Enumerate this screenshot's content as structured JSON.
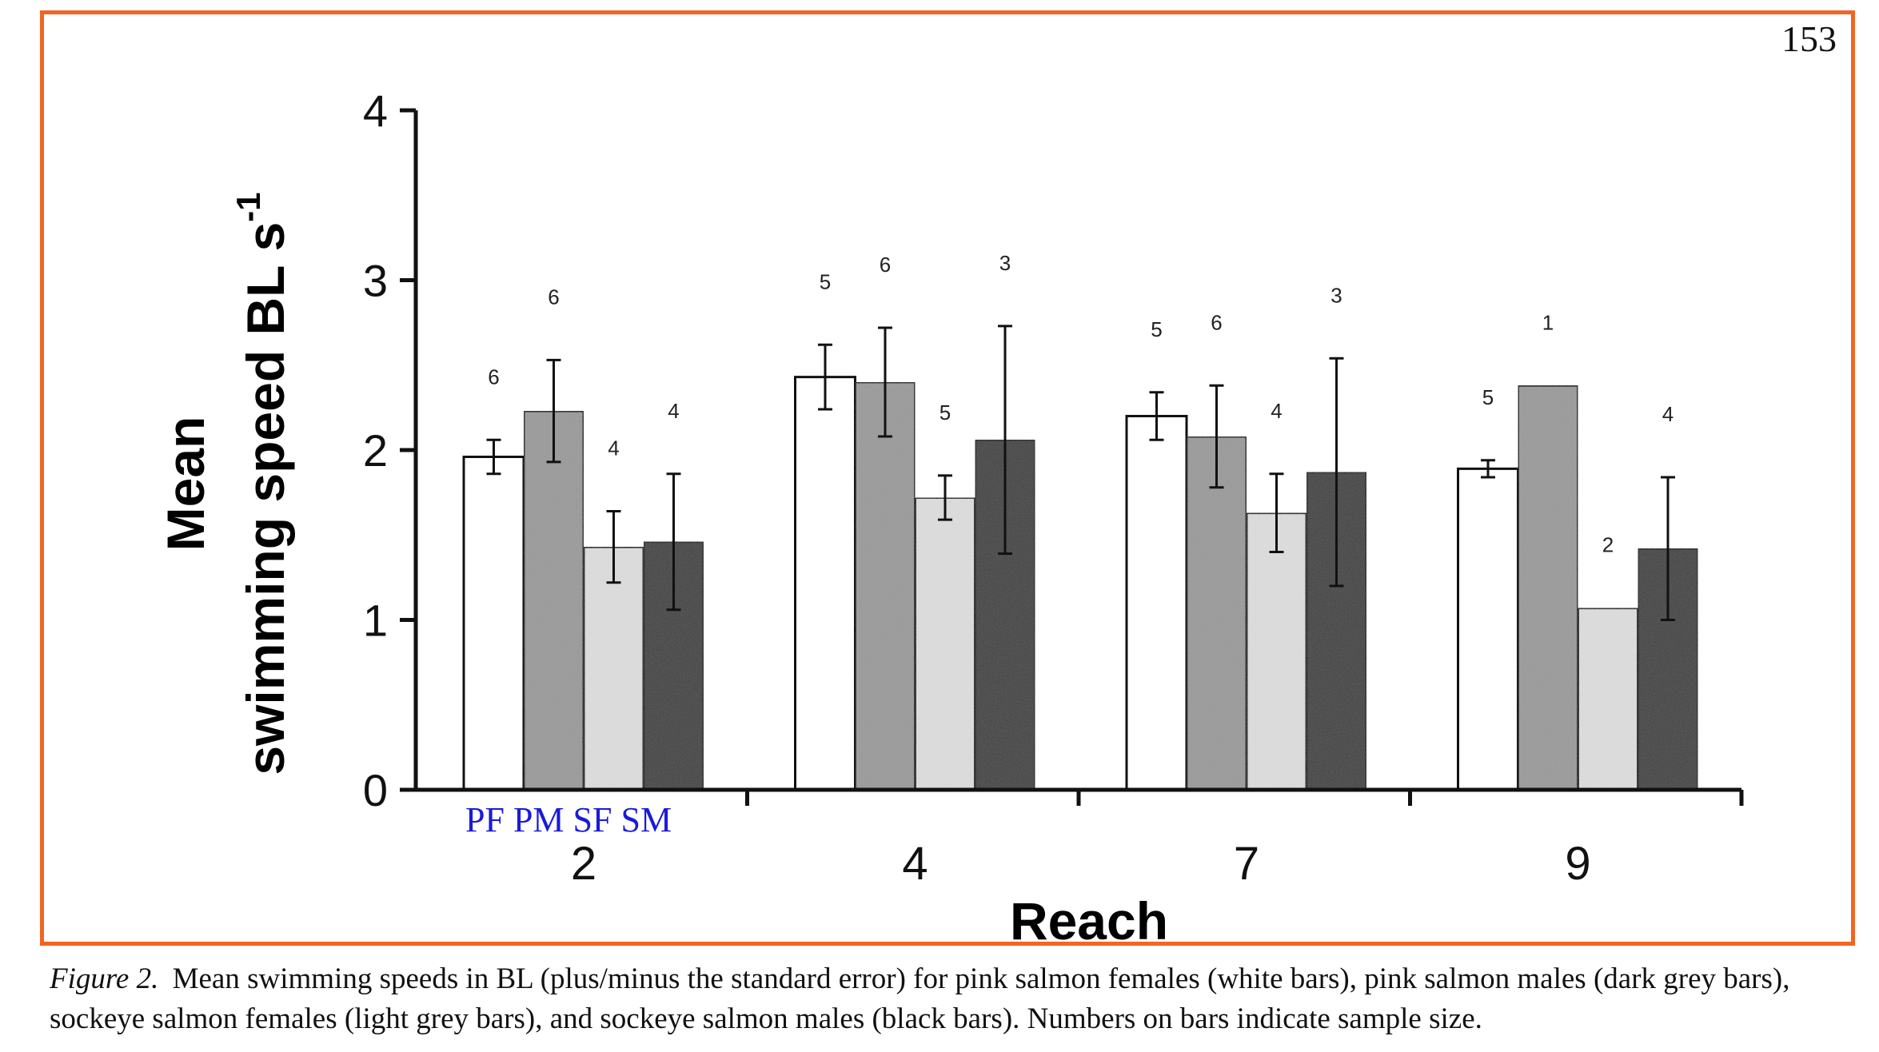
{
  "page_number": "153",
  "chart_data": {
    "type": "bar",
    "title": "",
    "xlabel": "Reach",
    "ylabel_line1": "Mean",
    "ylabel_line2": "swimming speed BL s",
    "ylabel_superscript": "-1",
    "ylim": [
      0,
      4
    ],
    "yticks": [
      "0",
      "1",
      "2",
      "3",
      "4"
    ],
    "categories": [
      "2",
      "4",
      "7",
      "9"
    ],
    "legend_keys": "PF PM SF SM",
    "grid": false,
    "series": [
      {
        "name": "PF",
        "color": "#ffffff",
        "values": [
          1.96,
          2.43,
          2.2,
          1.89
        ],
        "errors": [
          0.1,
          0.19,
          0.14,
          0.05
        ],
        "n": [
          "6",
          "5",
          "5",
          "5"
        ]
      },
      {
        "name": "PM",
        "color": "#9a9a9a",
        "values": [
          2.23,
          2.4,
          2.08,
          2.38
        ],
        "errors": [
          0.3,
          0.32,
          0.3,
          0
        ],
        "n": [
          "6",
          "6",
          "6",
          "1"
        ]
      },
      {
        "name": "SF",
        "color": "#dedede",
        "values": [
          1.43,
          1.72,
          1.63,
          1.07
        ],
        "errors": [
          0.21,
          0.13,
          0.23,
          0
        ],
        "n": [
          "4",
          "5",
          "4",
          "2"
        ]
      },
      {
        "name": "SM",
        "color": "#3a3a3a",
        "values": [
          1.46,
          2.06,
          1.87,
          1.42
        ],
        "errors": [
          0.4,
          0.67,
          0.67,
          0.42
        ],
        "n": [
          "4",
          "3",
          "3",
          "4"
        ]
      }
    ]
  },
  "caption": {
    "figure_label": "Figure 2.",
    "text": "Mean swimming speeds in BL (plus/minus the standard error) for pink salmon females (white bars), pink salmon males (dark grey bars), sockeye salmon females (light grey bars), and sockeye salmon males (black bars). Numbers on bars indicate sample size."
  }
}
